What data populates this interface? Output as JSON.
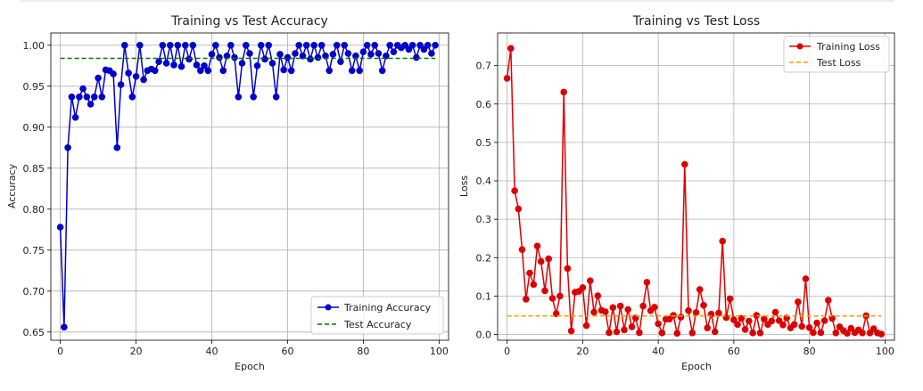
{
  "chart_data": [
    {
      "type": "line",
      "title": "Training vs Test Accuracy",
      "xlabel": "Epoch",
      "ylabel": "Accuracy",
      "xlim": [
        -2.5,
        102.5
      ],
      "ylim": [
        0.64,
        1.015
      ],
      "xticks": [
        0,
        20,
        40,
        60,
        80,
        100
      ],
      "yticks": [
        0.65,
        0.7,
        0.75,
        0.8,
        0.85,
        0.9,
        0.95,
        1.0
      ],
      "ytick_format": 2,
      "grid": true,
      "legend_position": "bottom-right",
      "series": [
        {
          "name": "Training Accuracy",
          "color": "#0000cc",
          "style": "line-markers",
          "x": [
            0,
            1,
            2,
            3,
            4,
            5,
            6,
            7,
            8,
            9,
            10,
            11,
            12,
            13,
            14,
            15,
            16,
            17,
            18,
            19,
            20,
            21,
            22,
            23,
            24,
            25,
            26,
            27,
            28,
            29,
            30,
            31,
            32,
            33,
            34,
            35,
            36,
            37,
            38,
            39,
            40,
            41,
            42,
            43,
            44,
            45,
            46,
            47,
            48,
            49,
            50,
            51,
            52,
            53,
            54,
            55,
            56,
            57,
            58,
            59,
            60,
            61,
            62,
            63,
            64,
            65,
            66,
            67,
            68,
            69,
            70,
            71,
            72,
            73,
            74,
            75,
            76,
            77,
            78,
            79,
            80,
            81,
            82,
            83,
            84,
            85,
            86,
            87,
            88,
            89,
            90,
            91,
            92,
            93,
            94,
            95,
            96,
            97,
            98,
            99
          ],
          "y": [
            0.778,
            0.656,
            0.875,
            0.937,
            0.912,
            0.937,
            0.947,
            0.937,
            0.928,
            0.937,
            0.96,
            0.937,
            0.97,
            0.969,
            0.965,
            0.875,
            0.952,
            1.0,
            0.966,
            0.937,
            0.962,
            1.0,
            0.958,
            0.969,
            0.971,
            0.969,
            0.98,
            1.0,
            0.978,
            1.0,
            0.976,
            1.0,
            0.974,
            1.0,
            0.983,
            1.0,
            0.976,
            0.969,
            0.975,
            0.969,
            0.989,
            1.0,
            0.985,
            0.969,
            0.987,
            1.0,
            0.985,
            0.937,
            0.978,
            1.0,
            0.99,
            0.937,
            0.975,
            1.0,
            0.983,
            1.0,
            0.978,
            0.937,
            0.989,
            0.97,
            0.985,
            0.969,
            0.99,
            1.0,
            0.987,
            1.0,
            0.983,
            1.0,
            0.985,
            1.0,
            0.987,
            0.969,
            0.989,
            1.0,
            0.98,
            1.0,
            0.99,
            0.969,
            0.987,
            0.969,
            0.992,
            1.0,
            0.989,
            1.0,
            0.99,
            0.969,
            0.987,
            1.0,
            0.992,
            1.0,
            0.997,
            1.0,
            0.995,
            1.0,
            0.985,
            1.0,
            0.995,
            1.0,
            0.99,
            1.0
          ]
        },
        {
          "name": "Test Accuracy",
          "color": "#007700",
          "style": "dashed",
          "x": [
            0,
            99
          ],
          "y": [
            0.984,
            0.984
          ]
        }
      ]
    },
    {
      "type": "line",
      "title": "Training vs Test Loss",
      "xlabel": "Epoch",
      "ylabel": "Loss",
      "xlim": [
        -2.5,
        102.5
      ],
      "ylim": [
        -0.015,
        0.785
      ],
      "xticks": [
        0,
        20,
        40,
        60,
        80,
        100
      ],
      "yticks": [
        0.0,
        0.1,
        0.2,
        0.3,
        0.4,
        0.5,
        0.6,
        0.7
      ],
      "ytick_format": 1,
      "grid": true,
      "legend_position": "top-right",
      "series": [
        {
          "name": "Training Loss",
          "color": "#dd0000",
          "style": "line-markers",
          "x": [
            0,
            1,
            2,
            3,
            4,
            5,
            6,
            7,
            8,
            9,
            10,
            11,
            12,
            13,
            14,
            15,
            16,
            17,
            18,
            19,
            20,
            21,
            22,
            23,
            24,
            25,
            26,
            27,
            28,
            29,
            30,
            31,
            32,
            33,
            34,
            35,
            36,
            37,
            38,
            39,
            40,
            41,
            42,
            43,
            44,
            45,
            46,
            47,
            48,
            49,
            50,
            51,
            52,
            53,
            54,
            55,
            56,
            57,
            58,
            59,
            60,
            61,
            62,
            63,
            64,
            65,
            66,
            67,
            68,
            69,
            70,
            71,
            72,
            73,
            74,
            75,
            76,
            77,
            78,
            79,
            80,
            81,
            82,
            83,
            84,
            85,
            86,
            87,
            88,
            89,
            90,
            91,
            92,
            93,
            94,
            95,
            96,
            97,
            98,
            99
          ],
          "y": [
            0.667,
            0.745,
            0.374,
            0.327,
            0.221,
            0.092,
            0.16,
            0.13,
            0.23,
            0.19,
            0.114,
            0.197,
            0.094,
            0.054,
            0.1,
            0.631,
            0.172,
            0.009,
            0.11,
            0.112,
            0.122,
            0.023,
            0.14,
            0.058,
            0.101,
            0.063,
            0.059,
            0.005,
            0.07,
            0.007,
            0.074,
            0.012,
            0.065,
            0.02,
            0.043,
            0.005,
            0.074,
            0.136,
            0.062,
            0.071,
            0.028,
            0.004,
            0.04,
            0.04,
            0.05,
            0.003,
            0.045,
            0.443,
            0.062,
            0.004,
            0.057,
            0.117,
            0.076,
            0.017,
            0.053,
            0.007,
            0.056,
            0.243,
            0.044,
            0.093,
            0.038,
            0.026,
            0.042,
            0.013,
            0.035,
            0.004,
            0.05,
            0.004,
            0.04,
            0.026,
            0.035,
            0.058,
            0.036,
            0.025,
            0.043,
            0.017,
            0.026,
            0.085,
            0.021,
            0.145,
            0.018,
            0.005,
            0.03,
            0.005,
            0.036,
            0.089,
            0.042,
            0.004,
            0.02,
            0.01,
            0.003,
            0.016,
            0.005,
            0.012,
            0.004,
            0.049,
            0.004,
            0.015,
            0.004,
            0.001
          ]
        },
        {
          "name": "Test Loss",
          "color": "#f0a000",
          "style": "dashed",
          "x": [
            0,
            99
          ],
          "y": [
            0.048,
            0.048
          ]
        }
      ]
    }
  ]
}
